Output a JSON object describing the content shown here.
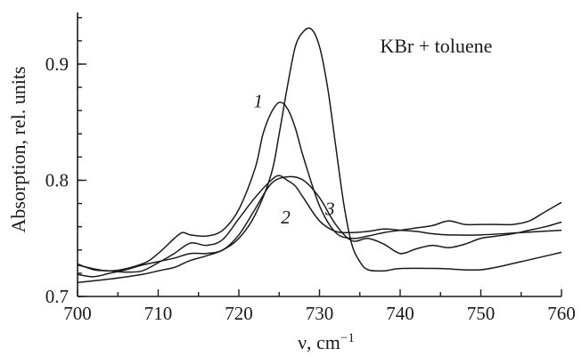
{
  "chart_data": {
    "type": "line",
    "title": "",
    "xlabel": "ν, cm",
    "xlabel_superscript": "−1",
    "ylabel": "Absorption, rel. units",
    "xlim": [
      700,
      760
    ],
    "ylim": [
      0.7,
      0.95
    ],
    "x_ticks": [
      700,
      710,
      720,
      730,
      740,
      750,
      760
    ],
    "x_tick_labels": [
      "700",
      "710",
      "720",
      "730",
      "740",
      "750",
      "760"
    ],
    "y_ticks": [
      0.7,
      0.8,
      0.9
    ],
    "y_tick_labels": [
      "0.7",
      "0.8",
      "0.9"
    ],
    "grid": false,
    "series": [
      {
        "name": "KBr + toluene",
        "x": [
          700,
          704,
          708,
          710,
          712,
          713,
          714,
          716,
          718,
          720,
          722,
          724,
          725,
          726,
          727,
          728,
          729,
          730,
          731,
          732,
          733,
          734,
          735,
          736,
          738,
          740,
          745,
          750,
          755,
          760
        ],
        "y": [
          0.712,
          0.715,
          0.719,
          0.722,
          0.725,
          0.728,
          0.731,
          0.735,
          0.74,
          0.75,
          0.77,
          0.805,
          0.84,
          0.88,
          0.915,
          0.928,
          0.93,
          0.915,
          0.88,
          0.83,
          0.78,
          0.745,
          0.73,
          0.723,
          0.722,
          0.724,
          0.724,
          0.723,
          0.73,
          0.738
        ]
      },
      {
        "name": "1",
        "x": [
          700,
          704,
          708,
          710,
          712,
          713,
          714,
          716,
          718,
          720,
          722,
          723,
          724,
          725,
          726,
          727,
          728,
          730,
          732,
          734,
          736,
          738,
          740,
          742,
          744,
          746,
          748,
          750,
          752,
          754,
          756,
          758,
          760
        ],
        "y": [
          0.727,
          0.722,
          0.728,
          0.737,
          0.75,
          0.755,
          0.753,
          0.752,
          0.757,
          0.775,
          0.81,
          0.84,
          0.858,
          0.867,
          0.862,
          0.845,
          0.82,
          0.778,
          0.755,
          0.75,
          0.752,
          0.755,
          0.757,
          0.759,
          0.761,
          0.765,
          0.762,
          0.762,
          0.762,
          0.762,
          0.765,
          0.773,
          0.781
        ]
      },
      {
        "name": "2",
        "x": [
          700,
          702,
          704,
          706,
          708,
          710,
          712,
          714,
          716,
          718,
          720,
          722,
          724,
          725,
          726,
          727,
          728,
          730,
          732,
          734,
          736,
          738,
          740,
          742,
          744,
          746,
          750,
          755,
          760
        ],
        "y": [
          0.728,
          0.723,
          0.722,
          0.721,
          0.722,
          0.729,
          0.737,
          0.746,
          0.744,
          0.749,
          0.767,
          0.785,
          0.8,
          0.804,
          0.8,
          0.795,
          0.785,
          0.765,
          0.756,
          0.755,
          0.756,
          0.758,
          0.757,
          0.756,
          0.754,
          0.753,
          0.753,
          0.755,
          0.757
        ]
      },
      {
        "name": "3",
        "x": [
          700,
          702,
          704,
          706,
          708,
          710,
          712,
          714,
          716,
          718,
          720,
          722,
          724,
          726,
          728,
          730,
          732,
          734,
          736,
          738,
          740,
          742,
          744,
          746,
          748,
          750,
          752,
          754,
          756,
          758,
          760
        ],
        "y": [
          0.719,
          0.717,
          0.72,
          0.723,
          0.727,
          0.73,
          0.733,
          0.737,
          0.737,
          0.74,
          0.753,
          0.775,
          0.797,
          0.803,
          0.8,
          0.785,
          0.762,
          0.748,
          0.75,
          0.745,
          0.737,
          0.741,
          0.744,
          0.742,
          0.745,
          0.75,
          0.752,
          0.754,
          0.757,
          0.76,
          0.764
        ]
      }
    ],
    "annotations": [
      {
        "text": "KBr + toluene",
        "x": 737.5,
        "y": 0.91,
        "style": "normal"
      },
      {
        "text": "1",
        "x": 722.4,
        "y": 0.863,
        "style": "italic"
      },
      {
        "text": "2",
        "x": 725.8,
        "y": 0.763,
        "style": "italic"
      },
      {
        "text": "3",
        "x": 731.3,
        "y": 0.77,
        "style": "italic"
      }
    ]
  }
}
